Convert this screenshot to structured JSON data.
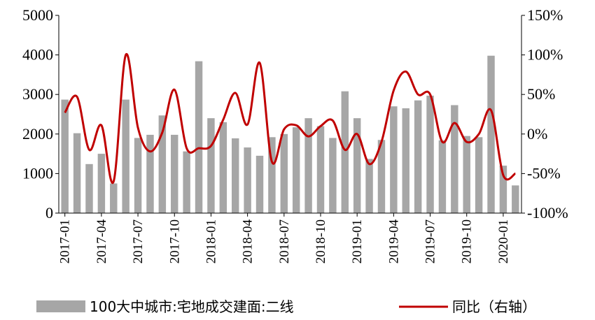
{
  "chart_data": {
    "type": "bar+line",
    "x": [
      "2017-01",
      "2017-02",
      "2017-03",
      "2017-04",
      "2017-05",
      "2017-06",
      "2017-07",
      "2017-08",
      "2017-09",
      "2017-10",
      "2017-11",
      "2017-12",
      "2018-01",
      "2018-02",
      "2018-03",
      "2018-04",
      "2018-05",
      "2018-06",
      "2018-07",
      "2018-08",
      "2018-09",
      "2018-10",
      "2018-11",
      "2018-12",
      "2019-01",
      "2019-02",
      "2019-03",
      "2019-04",
      "2019-05",
      "2019-06",
      "2019-07",
      "2019-08",
      "2019-09",
      "2019-10",
      "2019-11",
      "2019-12",
      "2020-01",
      "2020-02"
    ],
    "x_tick_labels": [
      "2017-01",
      "2017-04",
      "2017-07",
      "2017-10",
      "2018-01",
      "2018-04",
      "2018-07",
      "2018-10",
      "2019-01",
      "2019-04",
      "2019-07",
      "2019-10",
      "2020-01"
    ],
    "series": [
      {
        "name": "100大中城市:宅地成交建面:二线",
        "kind": "bar",
        "axis": "left",
        "color": "#a6a6a6",
        "values": [
          2870,
          2020,
          1240,
          1500,
          750,
          2870,
          1900,
          1980,
          2470,
          1980,
          1560,
          3840,
          2400,
          2300,
          1890,
          1660,
          1450,
          1920,
          2000,
          2170,
          2400,
          2200,
          1900,
          3080,
          2400,
          1370,
          1850,
          2700,
          2650,
          2850,
          2970,
          1840,
          2730,
          1950,
          1920,
          3980,
          1200,
          700
        ]
      },
      {
        "name": "同比（右轴）",
        "kind": "line",
        "axis": "right",
        "color": "#c00000",
        "values": [
          27,
          47,
          -20,
          11,
          -60,
          100,
          8,
          -22,
          2,
          56,
          -18,
          -18,
          -15,
          18,
          52,
          12,
          90,
          -35,
          6,
          11,
          -3,
          10,
          17,
          -20,
          0,
          -38,
          -10,
          55,
          79,
          50,
          50,
          -10,
          14,
          -10,
          0,
          30,
          -52,
          -50
        ]
      }
    ],
    "y_left": {
      "lim": [
        0,
        5000
      ],
      "ticks": [
        "0",
        "1000",
        "2000",
        "3000",
        "4000",
        "5000"
      ]
    },
    "y_right": {
      "lim": [
        -100,
        150
      ],
      "ticks": [
        "-100%",
        "-50%",
        "0%",
        "50%",
        "100%",
        "150%"
      ]
    },
    "grid": false,
    "legend_position": "bottom"
  }
}
